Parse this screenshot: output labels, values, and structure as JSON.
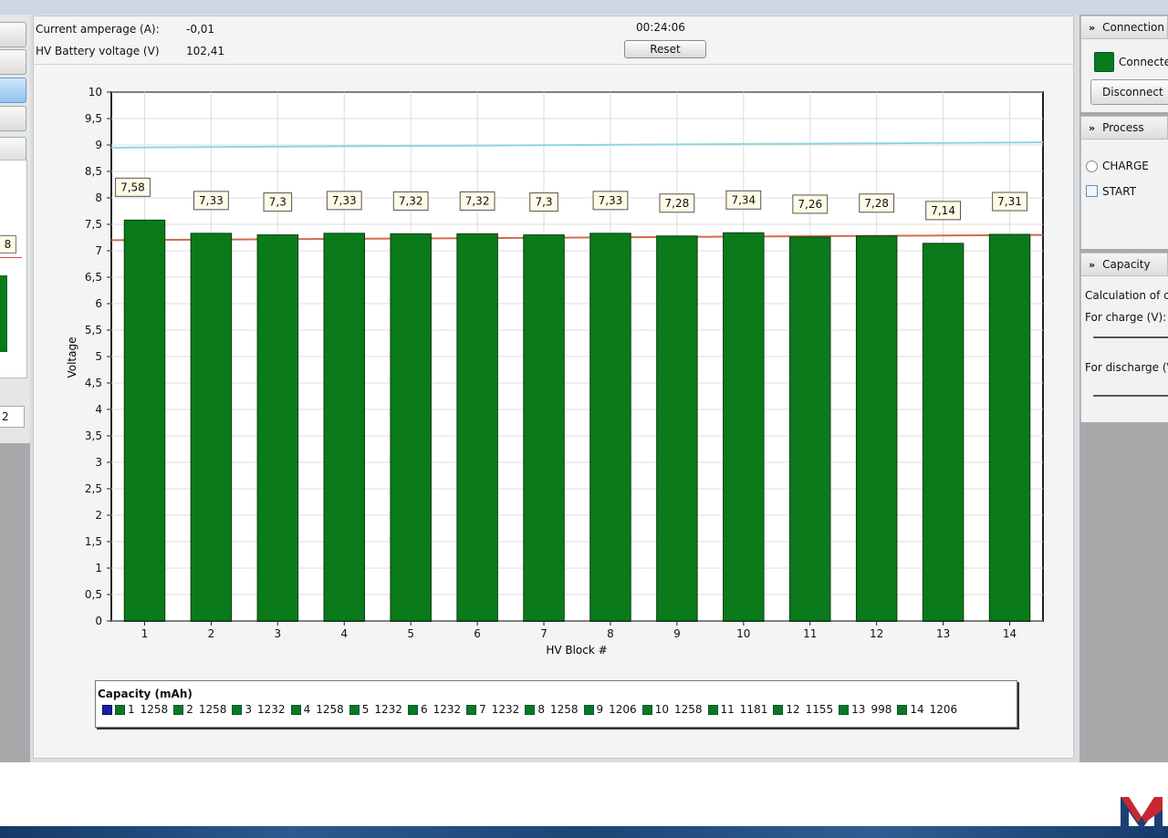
{
  "header": {
    "current_amperage_label": "Current amperage (A):",
    "current_amperage_value": "-0,01",
    "hv_voltage_label": "HV Battery voltage (V)",
    "hv_voltage_value": "102,41",
    "timer": "00:24:06",
    "reset_label": "Reset"
  },
  "left_panel": {
    "partial_label": "8",
    "partial_input": "2"
  },
  "chart_data": {
    "type": "bar",
    "categories": [
      "1",
      "2",
      "3",
      "4",
      "5",
      "6",
      "7",
      "8",
      "9",
      "10",
      "11",
      "12",
      "13",
      "14"
    ],
    "values": [
      7.58,
      7.33,
      7.3,
      7.33,
      7.32,
      7.32,
      7.3,
      7.33,
      7.28,
      7.34,
      7.26,
      7.28,
      7.14,
      7.31
    ],
    "data_labels": [
      "7,58",
      "7,33",
      "7,3",
      "7,33",
      "7,32",
      "7,32",
      "7,3",
      "7,33",
      "7,28",
      "7,34",
      "7,26",
      "7,28",
      "7,14",
      "7,31"
    ],
    "ylabel": "Voltage",
    "xlabel": "HV Block #",
    "ylim": [
      0,
      10
    ],
    "yticks": [
      "0",
      "0,5",
      "1",
      "1,5",
      "2",
      "2,5",
      "3",
      "3,5",
      "4",
      "4,5",
      "5",
      "5,5",
      "6",
      "6,5",
      "7",
      "7,5",
      "8",
      "8,5",
      "9",
      "9,5",
      "10"
    ],
    "reference_lines": [
      {
        "value_start": 8.95,
        "value_end": 9.05,
        "color": "#8fd6dd"
      },
      {
        "value_start": 7.2,
        "value_end": 7.3,
        "color": "#d46a4c"
      }
    ],
    "bar_color": "#0a7a1a",
    "grid": true
  },
  "legend": {
    "title": "Capacity (mAh)",
    "items": [
      {
        "label": "1",
        "value": "1258"
      },
      {
        "label": "2",
        "value": "1258"
      },
      {
        "label": "3",
        "value": "1232"
      },
      {
        "label": "4",
        "value": "1258"
      },
      {
        "label": "5",
        "value": "1232"
      },
      {
        "label": "6",
        "value": "1232"
      },
      {
        "label": "7",
        "value": "1232"
      },
      {
        "label": "8",
        "value": "1258"
      },
      {
        "label": "9",
        "value": "1206"
      },
      {
        "label": "10",
        "value": "1258"
      },
      {
        "label": "11",
        "value": "1181"
      },
      {
        "label": "12",
        "value": "1155"
      },
      {
        "label": "13",
        "value": "998"
      },
      {
        "label": "14",
        "value": "1206"
      }
    ]
  },
  "right_panel": {
    "connection_header": "Connection",
    "connected_label": "Connecte",
    "disconnect_label": "Disconnect",
    "process_header": "Process",
    "charge_label": "CHARGE",
    "start_label": "START",
    "capacity_header": "Capacity",
    "calc_label": "Calculation of c",
    "for_charge_label": "For charge (V):",
    "for_discharge_label": "For discharge (V"
  },
  "colors": {
    "bar": "#0a7a1a",
    "cyan_line": "#8fd6dd",
    "red_line": "#d46a4c",
    "brand_red": "#c8282d",
    "brand_blue": "#1d3f73"
  }
}
